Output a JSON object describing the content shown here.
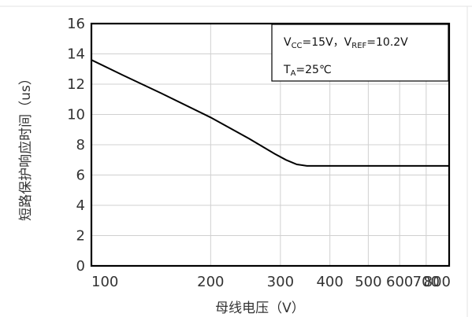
{
  "chart_data": {
    "type": "line",
    "xlabel": "母线电压（V）",
    "ylabel": "短路保护响应时间（us）",
    "x_scale": "log",
    "xlim": [
      100,
      800
    ],
    "ylim": [
      0,
      16
    ],
    "xticks": [
      100,
      200,
      300,
      400,
      500,
      600,
      700,
      800
    ],
    "yticks": [
      0,
      2,
      4,
      6,
      8,
      10,
      12,
      14,
      16
    ],
    "grid": true,
    "series": [
      {
        "x": [
          100,
          120,
          150,
          200,
          250,
          290,
          310,
          330,
          350,
          400,
          500,
          600,
          700,
          800
        ],
        "y": [
          13.6,
          12.6,
          11.4,
          9.8,
          8.4,
          7.4,
          7.0,
          6.7,
          6.6,
          6.6,
          6.6,
          6.6,
          6.6,
          6.6
        ]
      }
    ],
    "annotation": {
      "line1": {
        "v1": "V",
        "s1": "CC",
        "t1": "=15V，",
        "v2": "V",
        "s2": "REF",
        "t2": "=10.2V"
      },
      "line2": {
        "v": "T",
        "s": "A",
        "t": "=25℃"
      }
    }
  }
}
